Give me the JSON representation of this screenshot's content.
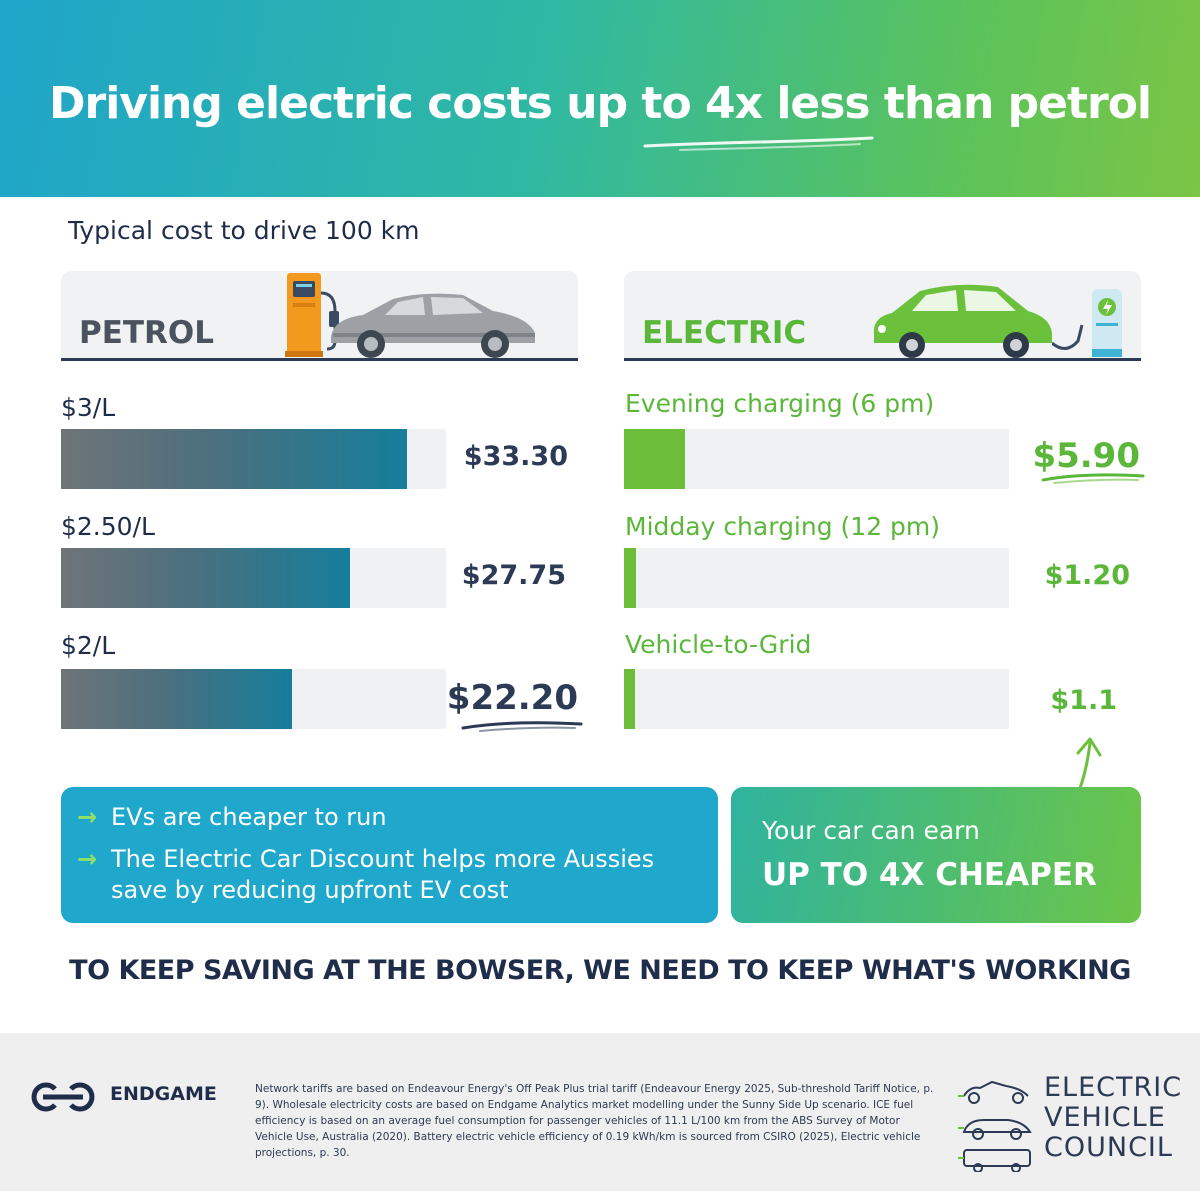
{
  "header": {
    "title": "Driving electric costs up to 4x less than petrol"
  },
  "subtitle": "Typical cost to drive 100 km",
  "colors": {
    "petrol_bar": "#157e9c",
    "electric_green": "#5ab73a",
    "navy": "#1f2d4a",
    "blue_box": "#1fa8cc"
  },
  "icons": {
    "petrol": "fuel-pump-icon",
    "electric": "ev-charger-icon",
    "callout": "curved-arrow-icon"
  },
  "chart_data": [
    {
      "type": "bar",
      "title": "PETROL",
      "categories": [
        "$3/L",
        "$2.50/L",
        "$2/L"
      ],
      "values": [
        33.3,
        27.75,
        22.2
      ],
      "value_labels": [
        "$33.30",
        "$27.75",
        "$22.20"
      ],
      "xlim": [
        0,
        37
      ]
    },
    {
      "type": "bar",
      "title": "ELECTRIC",
      "categories": [
        "Evening charging (6 pm)",
        "Midday charging (12 pm)",
        "Vehicle-to-Grid"
      ],
      "values": [
        5.9,
        1.2,
        1.1
      ],
      "value_labels": [
        "$5.90",
        "$1.20",
        "$1.1"
      ],
      "xlim": [
        0,
        37
      ]
    }
  ],
  "info_box": {
    "bullets": [
      {
        "lines": [
          "EVs are cheaper to run"
        ]
      },
      {
        "lines": [
          "The Electric Car Discount helps more Aussies",
          "save by reducing upfront EV cost"
        ]
      }
    ]
  },
  "callout": {
    "line1": "Your car can earn",
    "line2": "UP TO 4X CHEAPER"
  },
  "cta": "TO KEEP SAVING AT THE BOWSER, WE NEED TO KEEP WHAT'S WORKING",
  "footer": {
    "endgame": "ENDGAME",
    "footnote": "Network tariffs are based on Endeavour Energy's Off Peak Plus trial tariff (Endeavour Energy 2025, Sub-threshold Tariff Notice, p. 9). Wholesale electricity costs are based on Endgame Analytics market modelling under the Sunny Side Up scenario. ICE fuel efficiency is based on an average fuel consumption for passenger vehicles of 11.1 L/100 km from the ABS Survey of Motor Vehicle Use, Australia (2020). Battery electric vehicle efficiency of 0.19 kWh/km is sourced from CSIRO (2025), Electric vehicle projections, p. 30.",
    "evc": [
      "ELECTRIC",
      "VEHICLE",
      "COUNCIL"
    ]
  }
}
